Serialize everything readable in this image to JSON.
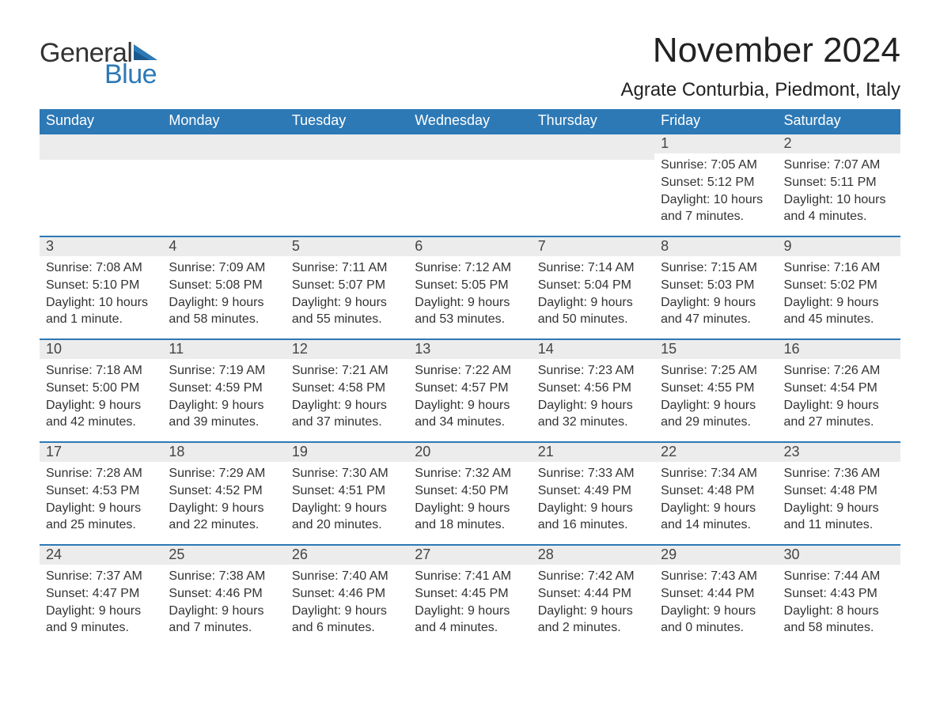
{
  "logo": {
    "text1": "General",
    "text2": "Blue",
    "color1": "#333333",
    "color2": "#2d79b6"
  },
  "title": "November 2024",
  "location": "Agrate Conturbia, Piedmont, Italy",
  "columns": [
    "Sunday",
    "Monday",
    "Tuesday",
    "Wednesday",
    "Thursday",
    "Friday",
    "Saturday"
  ],
  "colors": {
    "header_bg": "#2d79b6",
    "header_text": "#ffffff",
    "row_border": "#2d79b6",
    "daynum_bg": "#ececec",
    "text": "#333333",
    "background": "#ffffff"
  },
  "weeks": [
    [
      {
        "empty": true
      },
      {
        "empty": true
      },
      {
        "empty": true
      },
      {
        "empty": true
      },
      {
        "empty": true
      },
      {
        "day": "1",
        "sunrise": "Sunrise: 7:05 AM",
        "sunset": "Sunset: 5:12 PM",
        "daylight": "Daylight: 10 hours and 7 minutes."
      },
      {
        "day": "2",
        "sunrise": "Sunrise: 7:07 AM",
        "sunset": "Sunset: 5:11 PM",
        "daylight": "Daylight: 10 hours and 4 minutes."
      }
    ],
    [
      {
        "day": "3",
        "sunrise": "Sunrise: 7:08 AM",
        "sunset": "Sunset: 5:10 PM",
        "daylight": "Daylight: 10 hours and 1 minute."
      },
      {
        "day": "4",
        "sunrise": "Sunrise: 7:09 AM",
        "sunset": "Sunset: 5:08 PM",
        "daylight": "Daylight: 9 hours and 58 minutes."
      },
      {
        "day": "5",
        "sunrise": "Sunrise: 7:11 AM",
        "sunset": "Sunset: 5:07 PM",
        "daylight": "Daylight: 9 hours and 55 minutes."
      },
      {
        "day": "6",
        "sunrise": "Sunrise: 7:12 AM",
        "sunset": "Sunset: 5:05 PM",
        "daylight": "Daylight: 9 hours and 53 minutes."
      },
      {
        "day": "7",
        "sunrise": "Sunrise: 7:14 AM",
        "sunset": "Sunset: 5:04 PM",
        "daylight": "Daylight: 9 hours and 50 minutes."
      },
      {
        "day": "8",
        "sunrise": "Sunrise: 7:15 AM",
        "sunset": "Sunset: 5:03 PM",
        "daylight": "Daylight: 9 hours and 47 minutes."
      },
      {
        "day": "9",
        "sunrise": "Sunrise: 7:16 AM",
        "sunset": "Sunset: 5:02 PM",
        "daylight": "Daylight: 9 hours and 45 minutes."
      }
    ],
    [
      {
        "day": "10",
        "sunrise": "Sunrise: 7:18 AM",
        "sunset": "Sunset: 5:00 PM",
        "daylight": "Daylight: 9 hours and 42 minutes."
      },
      {
        "day": "11",
        "sunrise": "Sunrise: 7:19 AM",
        "sunset": "Sunset: 4:59 PM",
        "daylight": "Daylight: 9 hours and 39 minutes."
      },
      {
        "day": "12",
        "sunrise": "Sunrise: 7:21 AM",
        "sunset": "Sunset: 4:58 PM",
        "daylight": "Daylight: 9 hours and 37 minutes."
      },
      {
        "day": "13",
        "sunrise": "Sunrise: 7:22 AM",
        "sunset": "Sunset: 4:57 PM",
        "daylight": "Daylight: 9 hours and 34 minutes."
      },
      {
        "day": "14",
        "sunrise": "Sunrise: 7:23 AM",
        "sunset": "Sunset: 4:56 PM",
        "daylight": "Daylight: 9 hours and 32 minutes."
      },
      {
        "day": "15",
        "sunrise": "Sunrise: 7:25 AM",
        "sunset": "Sunset: 4:55 PM",
        "daylight": "Daylight: 9 hours and 29 minutes."
      },
      {
        "day": "16",
        "sunrise": "Sunrise: 7:26 AM",
        "sunset": "Sunset: 4:54 PM",
        "daylight": "Daylight: 9 hours and 27 minutes."
      }
    ],
    [
      {
        "day": "17",
        "sunrise": "Sunrise: 7:28 AM",
        "sunset": "Sunset: 4:53 PM",
        "daylight": "Daylight: 9 hours and 25 minutes."
      },
      {
        "day": "18",
        "sunrise": "Sunrise: 7:29 AM",
        "sunset": "Sunset: 4:52 PM",
        "daylight": "Daylight: 9 hours and 22 minutes."
      },
      {
        "day": "19",
        "sunrise": "Sunrise: 7:30 AM",
        "sunset": "Sunset: 4:51 PM",
        "daylight": "Daylight: 9 hours and 20 minutes."
      },
      {
        "day": "20",
        "sunrise": "Sunrise: 7:32 AM",
        "sunset": "Sunset: 4:50 PM",
        "daylight": "Daylight: 9 hours and 18 minutes."
      },
      {
        "day": "21",
        "sunrise": "Sunrise: 7:33 AM",
        "sunset": "Sunset: 4:49 PM",
        "daylight": "Daylight: 9 hours and 16 minutes."
      },
      {
        "day": "22",
        "sunrise": "Sunrise: 7:34 AM",
        "sunset": "Sunset: 4:48 PM",
        "daylight": "Daylight: 9 hours and 14 minutes."
      },
      {
        "day": "23",
        "sunrise": "Sunrise: 7:36 AM",
        "sunset": "Sunset: 4:48 PM",
        "daylight": "Daylight: 9 hours and 11 minutes."
      }
    ],
    [
      {
        "day": "24",
        "sunrise": "Sunrise: 7:37 AM",
        "sunset": "Sunset: 4:47 PM",
        "daylight": "Daylight: 9 hours and 9 minutes."
      },
      {
        "day": "25",
        "sunrise": "Sunrise: 7:38 AM",
        "sunset": "Sunset: 4:46 PM",
        "daylight": "Daylight: 9 hours and 7 minutes."
      },
      {
        "day": "26",
        "sunrise": "Sunrise: 7:40 AM",
        "sunset": "Sunset: 4:46 PM",
        "daylight": "Daylight: 9 hours and 6 minutes."
      },
      {
        "day": "27",
        "sunrise": "Sunrise: 7:41 AM",
        "sunset": "Sunset: 4:45 PM",
        "daylight": "Daylight: 9 hours and 4 minutes."
      },
      {
        "day": "28",
        "sunrise": "Sunrise: 7:42 AM",
        "sunset": "Sunset: 4:44 PM",
        "daylight": "Daylight: 9 hours and 2 minutes."
      },
      {
        "day": "29",
        "sunrise": "Sunrise: 7:43 AM",
        "sunset": "Sunset: 4:44 PM",
        "daylight": "Daylight: 9 hours and 0 minutes."
      },
      {
        "day": "30",
        "sunrise": "Sunrise: 7:44 AM",
        "sunset": "Sunset: 4:43 PM",
        "daylight": "Daylight: 8 hours and 58 minutes."
      }
    ]
  ]
}
